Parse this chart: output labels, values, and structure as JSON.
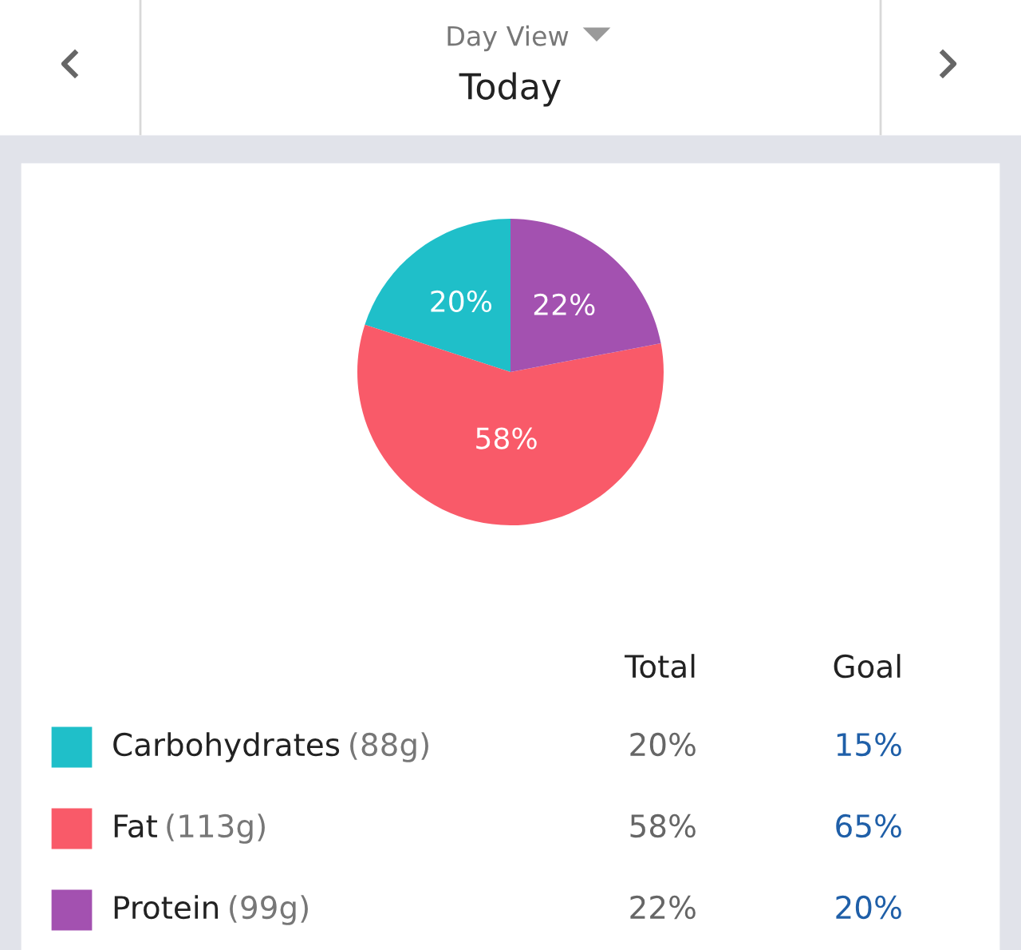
{
  "chart_data": {
    "type": "pie",
    "title": "Today",
    "subtitle": "Day View",
    "categories": [
      "Carbohydrates",
      "Fat",
      "Protein"
    ],
    "values": [
      20,
      58,
      22
    ],
    "colors": [
      "#1fbfc9",
      "#f95a69",
      "#a351b0"
    ],
    "value_labels": [
      "20%",
      "58%",
      "22%"
    ],
    "legend": "bottom",
    "annotations": [
      "(88g)",
      "(113g)",
      "(99g)",
      "Total",
      "Goal",
      "15%",
      "65%",
      "20%"
    ]
  }
}
